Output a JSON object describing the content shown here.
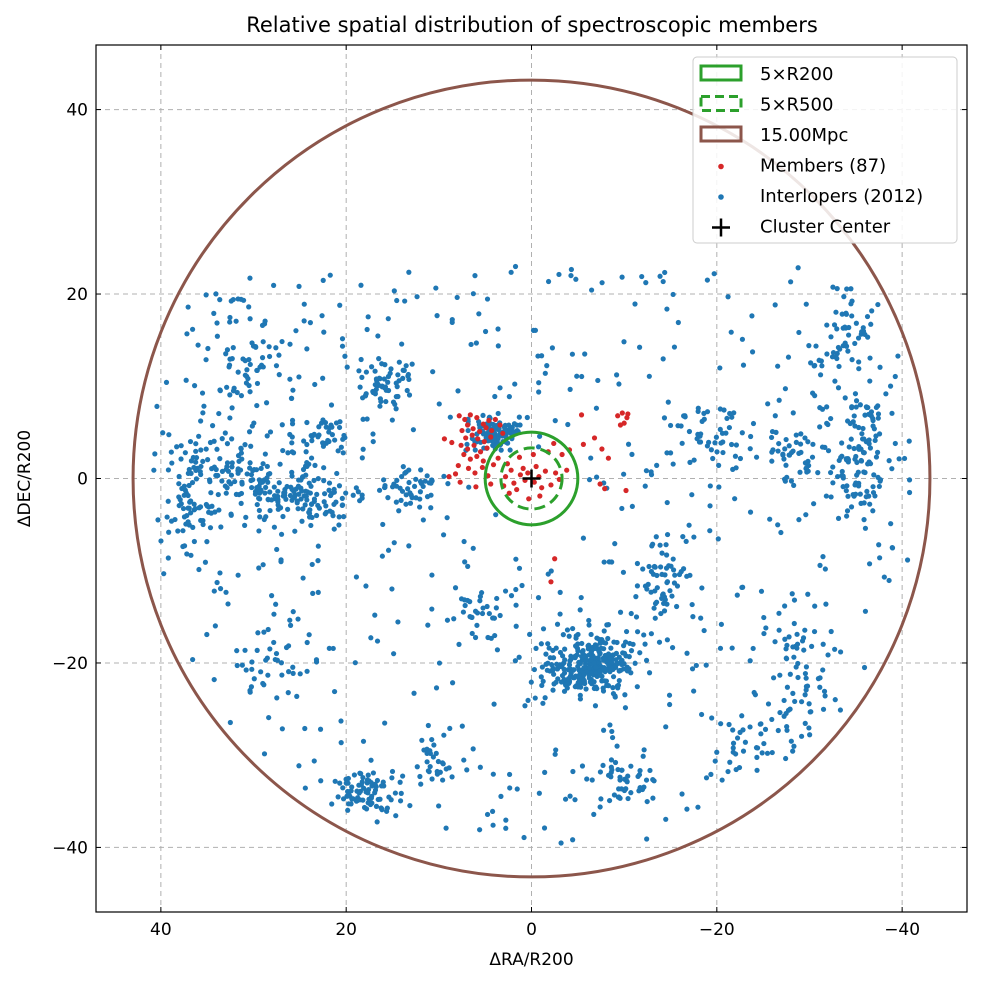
{
  "chart_data": {
    "type": "scatter",
    "title": "Relative spatial distribution of spectroscopic members",
    "xlabel": "ΔRA/R200",
    "ylabel": "ΔDEC/R200",
    "xlim": [
      47,
      -47
    ],
    "ylim": [
      -47,
      47
    ],
    "x_inverted": true,
    "grid": true,
    "x_ticks": [
      40,
      20,
      0,
      -20,
      -40
    ],
    "x_tick_labels": [
      "40",
      "20",
      "0",
      "−20",
      "−40"
    ],
    "y_ticks": [
      40,
      20,
      0,
      -20,
      -40
    ],
    "y_tick_labels": [
      "40",
      "20",
      "0",
      "−20",
      "−40"
    ],
    "legend_position": "upper right",
    "legend": [
      {
        "label": "5×R200",
        "kind": "solid-rect",
        "color": "#2ca02c"
      },
      {
        "label": "5×R500",
        "kind": "dashed-rect",
        "color": "#2ca02c"
      },
      {
        "label": "15.00Mpc",
        "kind": "solid-rect",
        "color": "#8c564b"
      },
      {
        "label": "Members (87)",
        "kind": "dot",
        "color": "#d62728"
      },
      {
        "label": "Interlopers (2012)",
        "kind": "dot",
        "color": "#1f77b4"
      },
      {
        "label": "Cluster Center",
        "kind": "plus",
        "color": "#000000"
      }
    ],
    "circles": [
      {
        "name": "5×R200",
        "radius": 5.0,
        "color": "#2ca02c",
        "style": "solid"
      },
      {
        "name": "5×R500",
        "radius": 3.3,
        "color": "#2ca02c",
        "style": "dashed"
      },
      {
        "name": "15.00Mpc",
        "radius": 43.0,
        "color": "#8c564b",
        "style": "solid"
      }
    ],
    "center": {
      "name": "Cluster Center",
      "x": 0,
      "y": 0,
      "color": "#000000"
    },
    "series": [
      {
        "name": "Members (87)",
        "color": "#d62728",
        "points": [
          [
            7.8,
            6.8
          ],
          [
            7.2,
            6.4
          ],
          [
            6.6,
            6.9
          ],
          [
            5.9,
            6.6
          ],
          [
            5.2,
            5.9
          ],
          [
            4.6,
            6.3
          ],
          [
            6.9,
            5.8
          ],
          [
            7.5,
            5.2
          ],
          [
            6.3,
            5.4
          ],
          [
            5.6,
            5.1
          ],
          [
            4.9,
            5.5
          ],
          [
            4.3,
            5.2
          ],
          [
            7.1,
            4.4
          ],
          [
            6.4,
            4.7
          ],
          [
            5.8,
            4.3
          ],
          [
            5.1,
            4.0
          ],
          [
            4.4,
            4.5
          ],
          [
            7.6,
            3.6
          ],
          [
            6.9,
            3.2
          ],
          [
            6.2,
            3.6
          ],
          [
            5.5,
            2.9
          ],
          [
            4.8,
            3.3
          ],
          [
            7.3,
            2.6
          ],
          [
            6.6,
            2.1
          ],
          [
            5.9,
            2.4
          ],
          [
            5.2,
            1.9
          ],
          [
            7.9,
            1.4
          ],
          [
            6.8,
            1.1
          ],
          [
            6.1,
            0.6
          ],
          [
            5.3,
            1.2
          ],
          [
            4.7,
            0.3
          ],
          [
            8.2,
            0.5
          ],
          [
            3.9,
            6.4
          ],
          [
            3.4,
            5.8
          ],
          [
            3.1,
            4.9
          ],
          [
            2.6,
            1.6
          ],
          [
            2.2,
            0.9
          ],
          [
            2.8,
            0.2
          ],
          [
            1.9,
            -0.5
          ],
          [
            1.2,
            0.4
          ],
          [
            0.7,
            -0.2
          ],
          [
            0.4,
            0.6
          ],
          [
            -0.3,
            -0.4
          ],
          [
            -0.8,
            0.2
          ],
          [
            1.6,
            -1.2
          ],
          [
            -1.1,
            -1.0
          ],
          [
            -1.5,
            0.8
          ],
          [
            0.9,
            1.1
          ],
          [
            -0.5,
            1.3
          ],
          [
            2.4,
            -1.6
          ],
          [
            3.6,
            2.2
          ],
          [
            4.1,
            1.5
          ],
          [
            -2.1,
            -0.7
          ],
          [
            -2.6,
            0.6
          ],
          [
            -9.3,
            6.8
          ],
          [
            -9.8,
            7.1
          ],
          [
            -10.3,
            6.6
          ],
          [
            -10.0,
            6.0
          ],
          [
            -9.6,
            5.8
          ],
          [
            -10.4,
            7.0
          ],
          [
            -5.4,
            6.9
          ],
          [
            -7.6,
            3.2
          ],
          [
            -7.4,
            -0.6
          ],
          [
            -7.9,
            -1.1
          ],
          [
            -10.2,
            -1.3
          ],
          [
            -2.5,
            -8.7
          ],
          [
            -2.1,
            -11.2
          ],
          [
            -3.3,
            2.6
          ],
          [
            -4.1,
            3.1
          ],
          [
            -8.3,
            2.2
          ],
          [
            -6.8,
            4.4
          ],
          [
            -1.8,
            2.9
          ],
          [
            -2.4,
            3.8
          ],
          [
            3.0,
            -0.8
          ],
          [
            8.9,
            0.2
          ],
          [
            9.4,
            4.3
          ],
          [
            8.6,
            3.9
          ],
          [
            7.7,
            -0.4
          ],
          [
            6.0,
            -0.9
          ],
          [
            -0.2,
            2.6
          ],
          [
            0.3,
            -2.2
          ],
          [
            -0.9,
            -1.9
          ],
          [
            1.3,
            2.3
          ],
          [
            -3.0,
            -0.1
          ],
          [
            -3.8,
            0.9
          ],
          [
            4.4,
            -0.6
          ],
          [
            -5.6,
            3.7
          ]
        ]
      },
      {
        "name": "Interlopers (2012)",
        "color": "#1f77b4",
        "clusters": [
          {
            "cx": 4.0,
            "cy": 5.0,
            "sx": 2.2,
            "sy": 1.3,
            "n": 110
          },
          {
            "cx": -6.5,
            "cy": -20.0,
            "sx": 3.2,
            "sy": 2.4,
            "n": 300
          },
          {
            "cx": 26.0,
            "cy": -2.0,
            "sx": 5.0,
            "sy": 2.2,
            "n": 140
          },
          {
            "cx": 33.0,
            "cy": 1.0,
            "sx": 4.0,
            "sy": 3.0,
            "n": 90
          },
          {
            "cx": 37.0,
            "cy": -3.0,
            "sx": 2.0,
            "sy": 3.5,
            "n": 45
          },
          {
            "cx": 18.0,
            "cy": -34.0,
            "sx": 2.2,
            "sy": 1.8,
            "n": 80
          },
          {
            "cx": 30.0,
            "cy": 13.0,
            "sx": 4.5,
            "sy": 5.0,
            "n": 70
          },
          {
            "cx": 15.5,
            "cy": 10.0,
            "sx": 2.2,
            "sy": 2.0,
            "n": 60
          },
          {
            "cx": 13.0,
            "cy": -1.0,
            "sx": 2.5,
            "sy": 1.5,
            "n": 45
          },
          {
            "cx": -35.5,
            "cy": 0.0,
            "sx": 2.0,
            "sy": 3.0,
            "n": 65
          },
          {
            "cx": -33.0,
            "cy": 15.0,
            "sx": 2.5,
            "sy": 4.0,
            "n": 50
          },
          {
            "cx": -14.0,
            "cy": -12.0,
            "sx": 2.0,
            "sy": 3.5,
            "n": 55
          },
          {
            "cx": -28.5,
            "cy": -20.0,
            "sx": 2.5,
            "sy": 6.0,
            "n": 55
          },
          {
            "cx": -10.0,
            "cy": -33.0,
            "sx": 3.0,
            "sy": 3.0,
            "n": 50
          },
          {
            "cx": 10.0,
            "cy": -31.0,
            "sx": 2.5,
            "sy": 2.5,
            "n": 35
          },
          {
            "cx": -20.0,
            "cy": 5.0,
            "sx": 3.0,
            "sy": 2.5,
            "n": 45
          },
          {
            "cx": -29.0,
            "cy": 3.0,
            "sx": 3.0,
            "sy": 2.5,
            "n": 45
          },
          {
            "cx": 22.0,
            "cy": 4.5,
            "sx": 3.0,
            "sy": 2.5,
            "n": 55
          },
          {
            "cx": 28.0,
            "cy": -20.0,
            "sx": 3.0,
            "sy": 3.0,
            "n": 30
          },
          {
            "cx": -25.0,
            "cy": -28.0,
            "sx": 3.0,
            "sy": 3.0,
            "n": 35
          },
          {
            "cx": 5.0,
            "cy": -15.0,
            "sx": 2.5,
            "sy": 3.0,
            "n": 30
          },
          {
            "cx": -36.0,
            "cy": 6.0,
            "sx": 1.5,
            "sy": 2.0,
            "n": 35
          }
        ],
        "uniform": {
          "n": 562,
          "xmin": -41,
          "xmax": 41,
          "ymin": -41,
          "ymax": 23,
          "max_r": 42
        }
      }
    ]
  }
}
